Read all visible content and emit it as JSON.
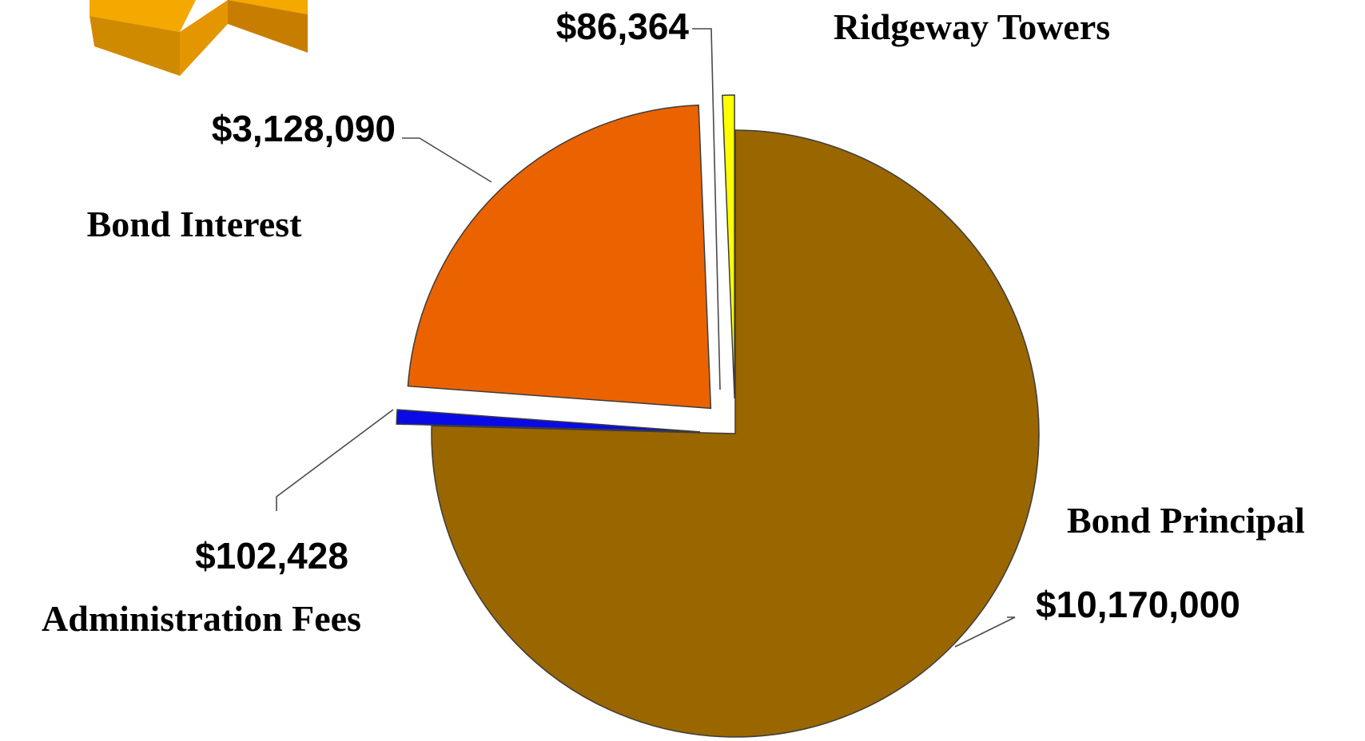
{
  "chart_data": {
    "type": "pie",
    "title": "",
    "slices": [
      {
        "name": "Bond Principal",
        "value": 10170000,
        "value_label": "$10,170,000",
        "color": "#996600",
        "exploded": false
      },
      {
        "name": "Administration Fees",
        "value": 102428,
        "value_label": "$102,428",
        "color": "#0a0ae6",
        "exploded": true
      },
      {
        "name": "Bond Interest",
        "value": 3128090,
        "value_label": "$3,128,090",
        "color": "#ea6300",
        "exploded": true
      },
      {
        "name": "Ridgeway Towers",
        "value": 86364,
        "value_label": "$86,364",
        "color": "#ffff00",
        "exploded": true
      }
    ],
    "decoration": {
      "name": "orange-3d-shape",
      "color": "#f0a400"
    }
  }
}
